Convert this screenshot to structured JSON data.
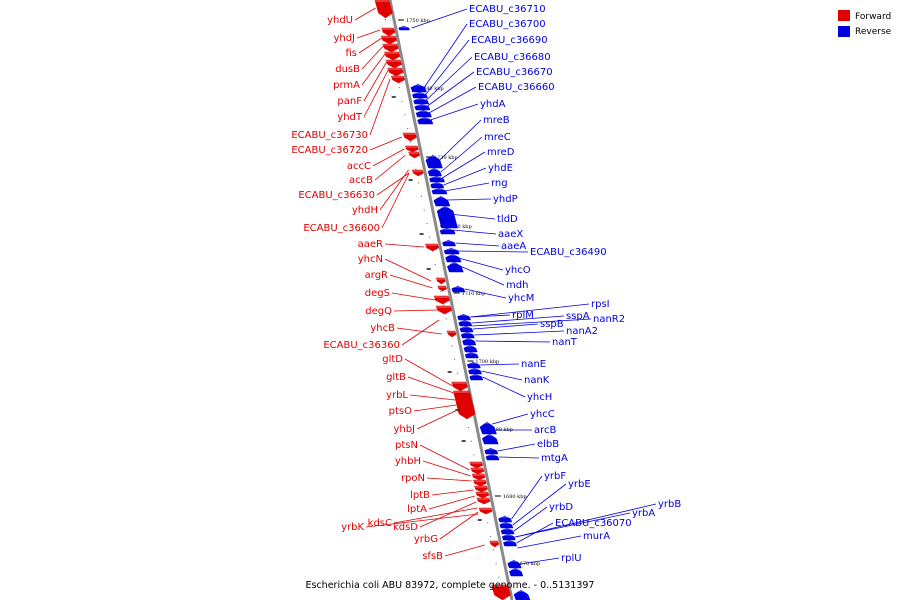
{
  "caption": "Escherichia coli ABU 83972, complete genome. - 0..5131397",
  "legend": [
    {
      "label": "Forward",
      "color": "#e00000"
    },
    {
      "label": "Reverse",
      "color": "#0000e0"
    }
  ],
  "colors": {
    "forward": "#e00000",
    "reverse": "#0000e0",
    "backbone": "#888888"
  },
  "scale_ticks": [
    "1750 kbp",
    "1740 kbp",
    "1730 kbp",
    "1720 kbp",
    "1710 kbp",
    "1700 kbp",
    "1690 kbp",
    "1680 kbp",
    "1670 kbp"
  ],
  "forward_labels": [
    "yhdU",
    "yhdJ",
    "fis",
    "dusB",
    "prmA",
    "panF",
    "yhdT",
    "ECABU_c36730",
    "ECABU_c36720",
    "accC",
    "accB",
    "ECABU_c36630",
    "yhdH",
    "ECABU_c36600",
    "aaeR",
    "yhcN",
    "argR",
    "degS",
    "degQ",
    "yhcB",
    "ECABU_c36360",
    "gltD",
    "gltB",
    "yrbL",
    "ptsO",
    "yhbJ",
    "ptsN",
    "yhbH",
    "rpoN",
    "lptB",
    "lptA",
    "kdsD",
    "kdsC",
    "yrbK",
    "yrbG",
    "sfsB"
  ],
  "reverse_labels": [
    "ECABU_c36710",
    "ECABU_c36700",
    "ECABU_c36690",
    "ECABU_c36680",
    "ECABU_c36670",
    "ECABU_c36660",
    "yhdA",
    "mreB",
    "mreC",
    "mreD",
    "yhdE",
    "rng",
    "yhdP",
    "tldD",
    "aaeX",
    "aaeA",
    "ECABU_c36490",
    "yhcO",
    "mdh",
    "yhcM",
    "rplM",
    "sspA",
    "rpsI",
    "sspB",
    "nanR2",
    "nanA2",
    "nanT",
    "nanE",
    "nanK",
    "yhcH",
    "yhcC",
    "arcB",
    "elbB",
    "mtgA",
    "yrbF",
    "yrbE",
    "yrbD",
    "yrbA",
    "yrbB",
    "ECABU_c36070",
    "murA",
    "rplU"
  ]
}
